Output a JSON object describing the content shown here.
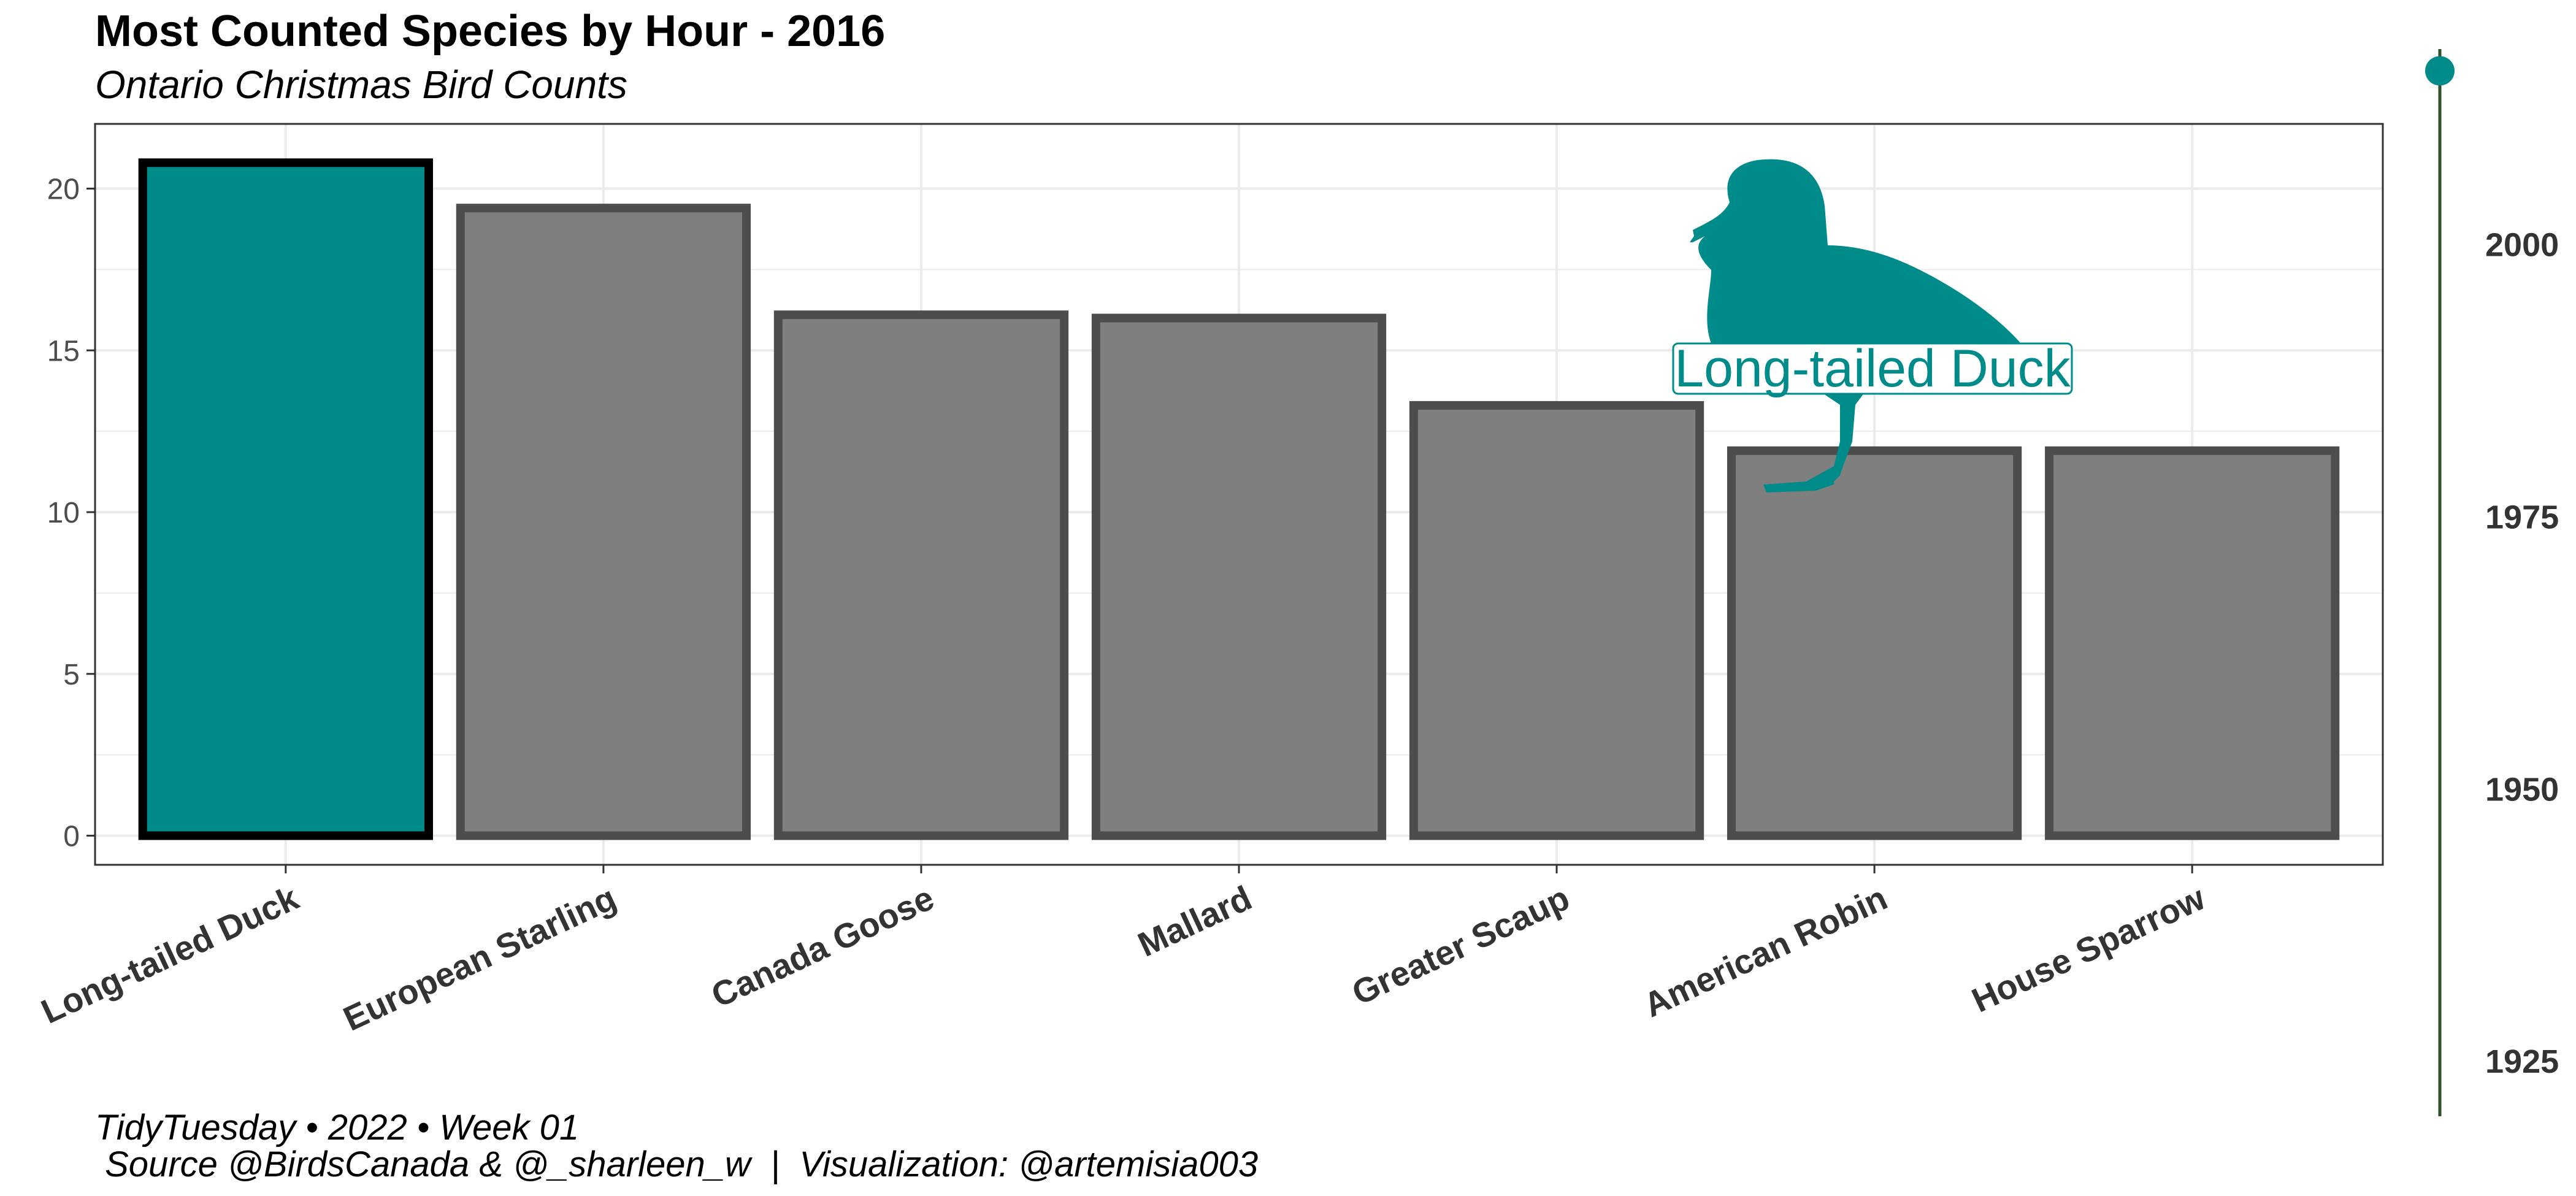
{
  "colors": {
    "highlight": "#008B8B",
    "bar_fill": "#7F7F7F",
    "bar_stroke": "#4D4D4D",
    "highlight_stroke": "#000000",
    "grid": "#EBEBEB",
    "panel_border": "#333333",
    "timeline": "#2F4F2F",
    "timeline_dot": "#008B8B"
  },
  "chart_data": {
    "type": "bar",
    "title": "Most Counted Species by Hour - 2016",
    "subtitle": "Ontario Christmas Bird Counts",
    "categories": [
      "Long-tailed Duck",
      "European Starling",
      "Canada Goose",
      "Mallard",
      "Greater Scaup",
      "American Robin",
      "House Sparrow"
    ],
    "values": [
      20.8,
      19.4,
      16.1,
      16.0,
      13.3,
      11.9,
      11.9
    ],
    "highlighted": "Long-tailed Duck",
    "ylim": [
      -0.9,
      22.0
    ],
    "yticks": [
      0,
      5,
      10,
      15,
      20
    ],
    "xlabel": "",
    "ylabel": "",
    "grid": true,
    "annotation": {
      "label": "Long-tailed Duck",
      "icon": "duck-silhouette-icon"
    },
    "timeline": {
      "range": [
        1920,
        2018
      ],
      "ticks": [
        1925,
        1950,
        1975,
        2000
      ],
      "current": 2016
    }
  },
  "caption": {
    "line1": "TidyTuesday • 2022 • Week 01",
    "line2": " Source @BirdsCanada & @_sharleen_w  |  Visualization: @artemisia003"
  }
}
